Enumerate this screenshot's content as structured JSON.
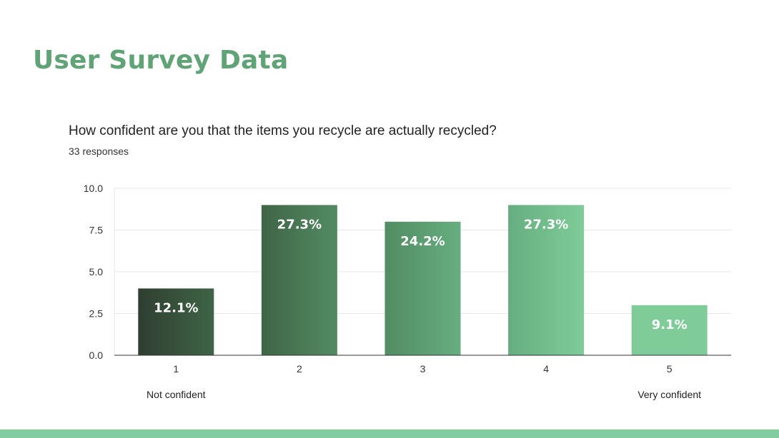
{
  "slide": {
    "title": "User Survey Data"
  },
  "question": {
    "text": "How confident are you that the items you recycle are actually recycled?",
    "responses": "33 responses"
  },
  "colors": {
    "title": "#5fa376",
    "bars": [
      "#2f3f31",
      "#3f6446",
      "#528c63",
      "#66ae80",
      "#7fcc98"
    ],
    "bottom_bar": "#83cca0"
  },
  "chart_data": {
    "type": "bar",
    "categories": [
      "1",
      "2",
      "3",
      "4",
      "5"
    ],
    "values": [
      4,
      9,
      8,
      9,
      3
    ],
    "data_labels": [
      "12.1%",
      "27.3%",
      "24.2%",
      "27.3%",
      "9.1%"
    ],
    "yticks": [
      "0.0",
      "2.5",
      "5.0",
      "7.5",
      "10.0"
    ],
    "ylim": [
      0,
      10
    ],
    "grid": true,
    "annotations": {
      "low": "Not confident",
      "high": "Very confident"
    },
    "title": "",
    "xlabel": "",
    "ylabel": ""
  }
}
